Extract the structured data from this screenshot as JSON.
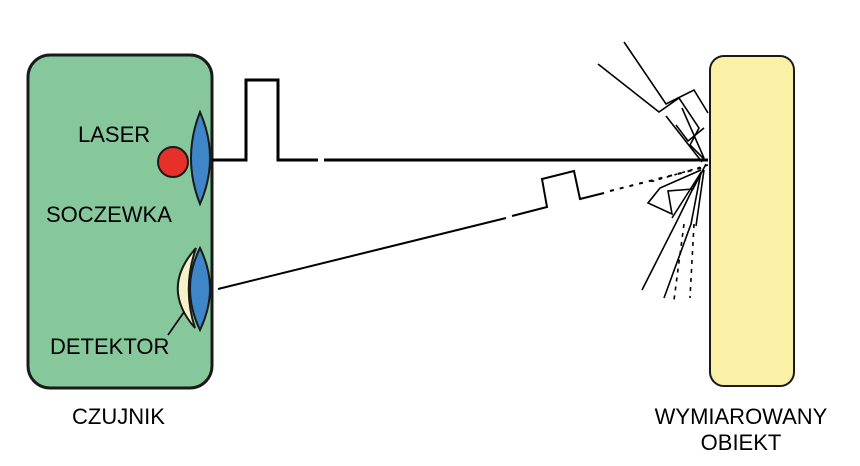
{
  "labels": {
    "laser": "LASER",
    "lens": "SOCZEWKA",
    "detector": "DETEKTOR",
    "sensor": "CZUJNIK",
    "object_line1": "WYMIAROWANY",
    "object_line2": "OBIEKT"
  },
  "colors": {
    "sensor_body": "#86C79C",
    "laser_dot": "#E8302A",
    "lens": "#3F86C8",
    "detector_crescent": "#F4F1C8",
    "object": "#FBF1A6",
    "outline": "#1a1a1a"
  }
}
